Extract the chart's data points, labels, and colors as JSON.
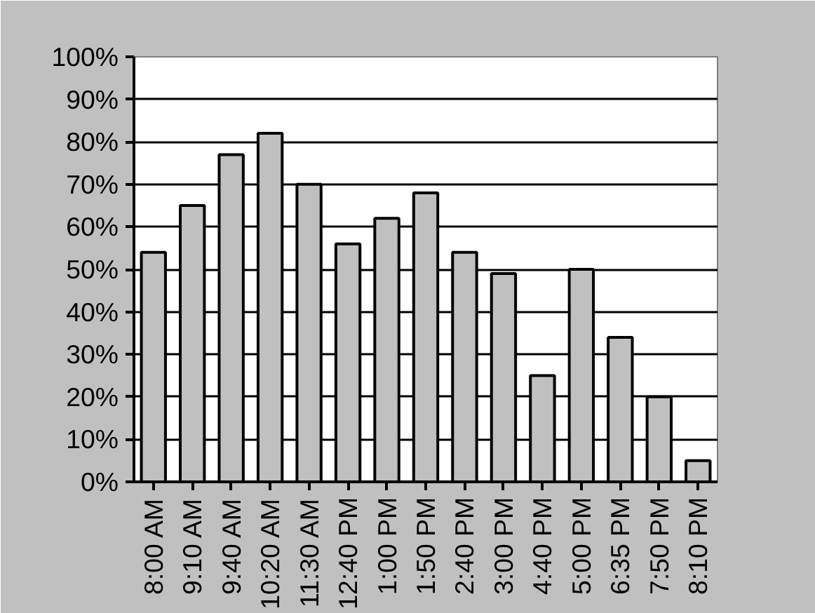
{
  "chart_data": {
    "type": "bar",
    "categories": [
      "8:00 AM",
      "9:10 AM",
      "9:40 AM",
      "10:20 AM",
      "11:30 AM",
      "12:40 PM",
      "1:00 PM",
      "1:50 PM",
      "2:40 PM",
      "3:00 PM",
      "4:40 PM",
      "5:00 PM",
      "6:35 PM",
      "7:50 PM",
      "8:10 PM"
    ],
    "values": [
      0.54,
      0.65,
      0.77,
      0.82,
      0.7,
      0.56,
      0.62,
      0.68,
      0.54,
      0.49,
      0.25,
      0.5,
      0.34,
      0.2,
      0.05
    ],
    "color": "#c0c0c0",
    "ylim": [
      0,
      1
    ],
    "yticks": [
      {
        "value": 0,
        "label": "0%"
      },
      {
        "value": 0.1,
        "label": "10%"
      },
      {
        "value": 0.2,
        "label": "20%"
      },
      {
        "value": 0.3,
        "label": "30%"
      },
      {
        "value": 0.4,
        "label": "40%"
      },
      {
        "value": 0.5,
        "label": "50%"
      },
      {
        "value": 0.6,
        "label": "60%"
      },
      {
        "value": 0.7,
        "label": "70%"
      },
      {
        "value": 0.8,
        "label": "80%"
      },
      {
        "value": 0.9,
        "label": "90%"
      },
      {
        "value": 1,
        "label": "100%"
      }
    ],
    "grid": "y"
  }
}
